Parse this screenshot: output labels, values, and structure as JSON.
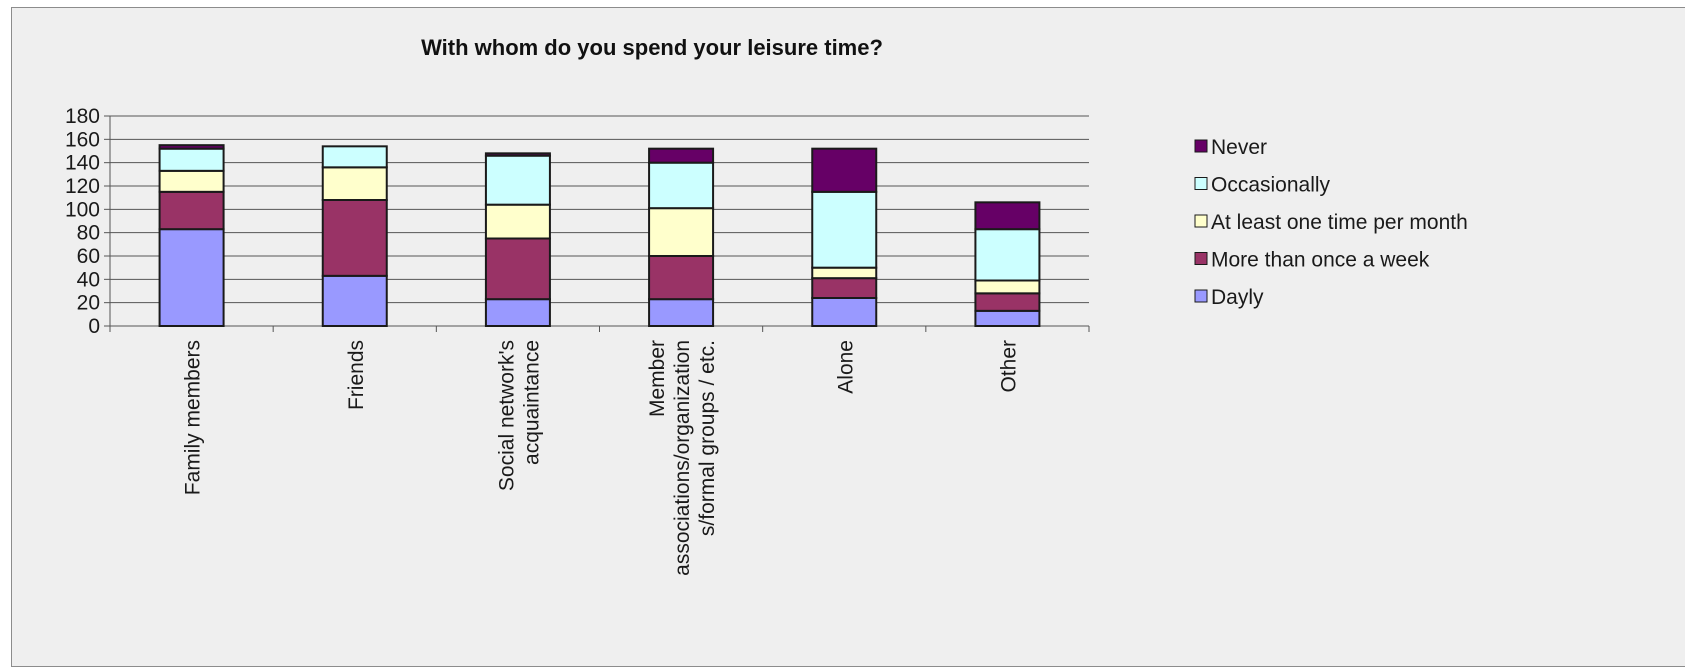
{
  "chart_data": {
    "type": "bar",
    "stacked": true,
    "title": "With whom do you spend your leisure time?",
    "xlabel": "",
    "ylabel": "",
    "ylim": [
      0,
      180
    ],
    "yticks": [
      0,
      20,
      40,
      60,
      80,
      100,
      120,
      140,
      160,
      180
    ],
    "grid": true,
    "legend_position": "right",
    "categories": [
      [
        "Family members"
      ],
      [
        "Friends"
      ],
      [
        "Social network's",
        "acquaintance"
      ],
      [
        "Member",
        "associations/organization",
        "s/formal groups / etc."
      ],
      [
        "Alone"
      ],
      [
        "Other"
      ]
    ],
    "series": [
      {
        "name": "Dayly",
        "color": "#9999ff",
        "values": [
          83,
          43,
          23,
          23,
          24,
          13
        ]
      },
      {
        "name": "More than once a week",
        "color": "#993366",
        "values": [
          32,
          65,
          52,
          37,
          17,
          15
        ]
      },
      {
        "name": "At least one time per month",
        "color": "#ffffcc",
        "values": [
          18,
          28,
          29,
          41,
          9,
          11
        ]
      },
      {
        "name": "Occasionally",
        "color": "#ccffff",
        "values": [
          19,
          18,
          42,
          39,
          65,
          44
        ]
      },
      {
        "name": "Never",
        "color": "#660066",
        "values": [
          3,
          0,
          2,
          12,
          37,
          23
        ]
      }
    ]
  }
}
